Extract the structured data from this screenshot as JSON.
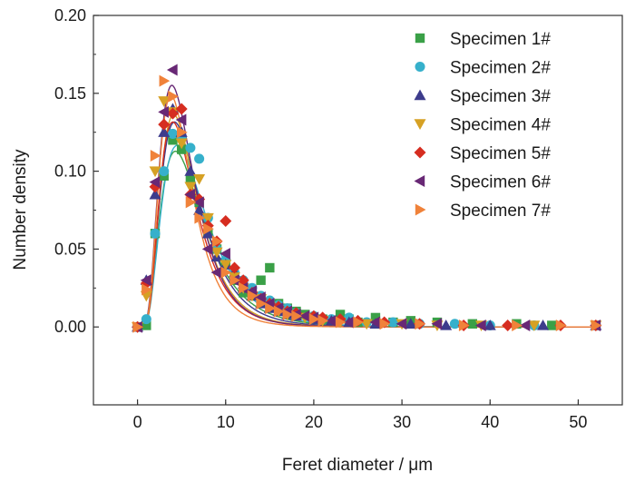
{
  "chart_data": {
    "type": "scatter",
    "xlabel": "Feret diameter / μm",
    "ylabel": "Number density",
    "xlim": [
      -5,
      55
    ],
    "ylim": [
      -0.05,
      0.2
    ],
    "xticks": [
      "0",
      "10",
      "20",
      "30",
      "40",
      "50"
    ],
    "yticks": [
      "0.00",
      "0.05",
      "0.10",
      "0.15",
      "0.20"
    ],
    "xtick_values": [
      0,
      10,
      20,
      30,
      40,
      50
    ],
    "ytick_values": [
      0,
      0.05,
      0.1,
      0.15,
      0.2
    ],
    "grid": false,
    "legend_position": "top-right",
    "series": [
      {
        "name": "Specimen 1#",
        "marker": "square",
        "color": "#3aa047",
        "fit_peak": 4.3,
        "fit_sigma": 0.55,
        "points": [
          [
            0,
            0
          ],
          [
            1,
            0.001
          ],
          [
            2,
            0.06
          ],
          [
            3,
            0.097
          ],
          [
            4,
            0.12
          ],
          [
            5,
            0.114
          ],
          [
            6,
            0.095
          ],
          [
            7,
            0.08
          ],
          [
            8,
            0.06
          ],
          [
            9,
            0.05
          ],
          [
            10,
            0.04
          ],
          [
            11,
            0.03
          ],
          [
            12,
            0.022
          ],
          [
            13,
            0.02
          ],
          [
            14,
            0.03
          ],
          [
            15,
            0.038
          ],
          [
            16,
            0.015
          ],
          [
            17,
            0.012
          ],
          [
            18,
            0.01
          ],
          [
            19,
            0.008
          ],
          [
            20,
            0.006
          ],
          [
            21,
            0.005
          ],
          [
            22,
            0.004
          ],
          [
            23,
            0.008
          ],
          [
            24,
            0.005
          ],
          [
            25,
            0.003
          ],
          [
            27,
            0.006
          ],
          [
            29,
            0.003
          ],
          [
            31,
            0.004
          ],
          [
            34,
            0.003
          ],
          [
            38,
            0.002
          ],
          [
            43,
            0.002
          ],
          [
            47,
            0.001
          ],
          [
            52,
            0.001
          ]
        ]
      },
      {
        "name": "Specimen 2#",
        "marker": "circle",
        "color": "#36b0cb",
        "fit_peak": 4.5,
        "fit_sigma": 0.55,
        "points": [
          [
            0,
            0
          ],
          [
            1,
            0.005
          ],
          [
            2,
            0.06
          ],
          [
            3,
            0.1
          ],
          [
            4,
            0.124
          ],
          [
            5,
            0.122
          ],
          [
            6,
            0.115
          ],
          [
            7,
            0.108
          ],
          [
            8,
            0.07
          ],
          [
            9,
            0.05
          ],
          [
            10,
            0.043
          ],
          [
            11,
            0.035
          ],
          [
            12,
            0.03
          ],
          [
            13,
            0.025
          ],
          [
            14,
            0.02
          ],
          [
            15,
            0.017
          ],
          [
            16,
            0.014
          ],
          [
            17,
            0.012
          ],
          [
            18,
            0.009
          ],
          [
            20,
            0.007
          ],
          [
            22,
            0.005
          ],
          [
            24,
            0.006
          ],
          [
            26,
            0.003
          ],
          [
            29,
            0.003
          ],
          [
            32,
            0.002
          ],
          [
            36,
            0.002
          ],
          [
            40,
            0.001
          ],
          [
            45,
            0.001
          ],
          [
            52,
            0.001
          ]
        ]
      },
      {
        "name": "Specimen 3#",
        "marker": "triangle-up",
        "color": "#3d3c8c",
        "fit_peak": 4.2,
        "fit_sigma": 0.52,
        "points": [
          [
            0,
            0
          ],
          [
            1,
            0.03
          ],
          [
            2,
            0.085
          ],
          [
            3,
            0.125
          ],
          [
            4,
            0.14
          ],
          [
            5,
            0.125
          ],
          [
            6,
            0.1
          ],
          [
            7,
            0.075
          ],
          [
            8,
            0.06
          ],
          [
            9,
            0.045
          ],
          [
            10,
            0.04
          ],
          [
            11,
            0.035
          ],
          [
            12,
            0.025
          ],
          [
            13,
            0.02
          ],
          [
            14,
            0.015
          ],
          [
            15,
            0.012
          ],
          [
            16,
            0.01
          ],
          [
            17,
            0.008
          ],
          [
            18,
            0.007
          ],
          [
            20,
            0.005
          ],
          [
            22,
            0.004
          ],
          [
            24,
            0.003
          ],
          [
            27,
            0.002
          ],
          [
            31,
            0.002
          ],
          [
            35,
            0.001
          ],
          [
            40,
            0.001
          ],
          [
            46,
            0.001
          ],
          [
            52,
            0.001
          ]
        ]
      },
      {
        "name": "Specimen 4#",
        "marker": "triangle-down",
        "color": "#d6a124",
        "fit_peak": 4.1,
        "fit_sigma": 0.5,
        "points": [
          [
            0,
            0
          ],
          [
            1,
            0.02
          ],
          [
            2,
            0.1
          ],
          [
            3,
            0.145
          ],
          [
            4,
            0.138
          ],
          [
            5,
            0.118
          ],
          [
            6,
            0.09
          ],
          [
            7,
            0.095
          ],
          [
            8,
            0.07
          ],
          [
            9,
            0.048
          ],
          [
            10,
            0.04
          ],
          [
            11,
            0.032
          ],
          [
            12,
            0.025
          ],
          [
            13,
            0.02
          ],
          [
            14,
            0.018
          ],
          [
            15,
            0.013
          ],
          [
            16,
            0.01
          ],
          [
            17,
            0.008
          ],
          [
            19,
            0.006
          ],
          [
            21,
            0.004
          ],
          [
            23,
            0.003
          ],
          [
            26,
            0.002
          ],
          [
            30,
            0.002
          ],
          [
            34,
            0.001
          ],
          [
            39,
            0.001
          ],
          [
            45,
            0.001
          ],
          [
            52,
            0.001
          ]
        ]
      },
      {
        "name": "Specimen 5#",
        "marker": "diamond",
        "color": "#d62d20",
        "fit_peak": 4.0,
        "fit_sigma": 0.5,
        "points": [
          [
            0,
            0
          ],
          [
            1,
            0.028
          ],
          [
            2,
            0.09
          ],
          [
            3,
            0.13
          ],
          [
            4,
            0.137
          ],
          [
            5,
            0.14
          ],
          [
            6,
            0.085
          ],
          [
            7,
            0.082
          ],
          [
            8,
            0.065
          ],
          [
            9,
            0.055
          ],
          [
            10,
            0.068
          ],
          [
            11,
            0.038
          ],
          [
            12,
            0.03
          ],
          [
            13,
            0.022
          ],
          [
            14,
            0.018
          ],
          [
            15,
            0.015
          ],
          [
            16,
            0.013
          ],
          [
            17,
            0.01
          ],
          [
            18,
            0.009
          ],
          [
            20,
            0.007
          ],
          [
            21,
            0.006
          ],
          [
            23,
            0.005
          ],
          [
            25,
            0.004
          ],
          [
            28,
            0.003
          ],
          [
            32,
            0.002
          ],
          [
            37,
            0.001
          ],
          [
            42,
            0.001
          ],
          [
            48,
            0.001
          ],
          [
            52,
            0.001
          ]
        ]
      },
      {
        "name": "Specimen 6#",
        "marker": "triangle-left",
        "color": "#682875",
        "fit_peak": 3.9,
        "fit_sigma": 0.5,
        "points": [
          [
            0,
            0
          ],
          [
            1,
            0.03
          ],
          [
            2,
            0.093
          ],
          [
            3,
            0.138
          ],
          [
            4,
            0.165
          ],
          [
            5,
            0.133
          ],
          [
            6,
            0.085
          ],
          [
            7,
            0.08
          ],
          [
            8,
            0.05
          ],
          [
            9,
            0.035
          ],
          [
            10,
            0.047
          ],
          [
            11,
            0.03
          ],
          [
            12,
            0.025
          ],
          [
            13,
            0.023
          ],
          [
            14,
            0.019
          ],
          [
            15,
            0.015
          ],
          [
            16,
            0.012
          ],
          [
            17,
            0.01
          ],
          [
            18,
            0.008
          ],
          [
            19,
            0.007
          ],
          [
            20,
            0.006
          ],
          [
            22,
            0.004
          ],
          [
            24,
            0.003
          ],
          [
            27,
            0.003
          ],
          [
            30,
            0.002
          ],
          [
            34,
            0.002
          ],
          [
            39,
            0.001
          ],
          [
            44,
            0.001
          ],
          [
            52,
            0.001
          ]
        ]
      },
      {
        "name": "Specimen 7#",
        "marker": "triangle-right",
        "color": "#f0823a",
        "fit_peak": 3.8,
        "fit_sigma": 0.48,
        "points": [
          [
            0,
            0
          ],
          [
            1,
            0.024
          ],
          [
            2,
            0.11
          ],
          [
            3,
            0.158
          ],
          [
            4,
            0.148
          ],
          [
            5,
            0.125
          ],
          [
            6,
            0.08
          ],
          [
            7,
            0.07
          ],
          [
            8,
            0.063
          ],
          [
            9,
            0.055
          ],
          [
            10,
            0.035
          ],
          [
            11,
            0.03
          ],
          [
            12,
            0.025
          ],
          [
            13,
            0.02
          ],
          [
            14,
            0.015
          ],
          [
            15,
            0.012
          ],
          [
            16,
            0.01
          ],
          [
            17,
            0.008
          ],
          [
            18,
            0.007
          ],
          [
            20,
            0.005
          ],
          [
            21,
            0.004
          ],
          [
            23,
            0.003
          ],
          [
            25,
            0.003
          ],
          [
            28,
            0.002
          ],
          [
            32,
            0.002
          ],
          [
            37,
            0.001
          ],
          [
            43,
            0.001
          ],
          [
            48,
            0.001
          ],
          [
            52,
            0.001
          ]
        ]
      }
    ]
  }
}
